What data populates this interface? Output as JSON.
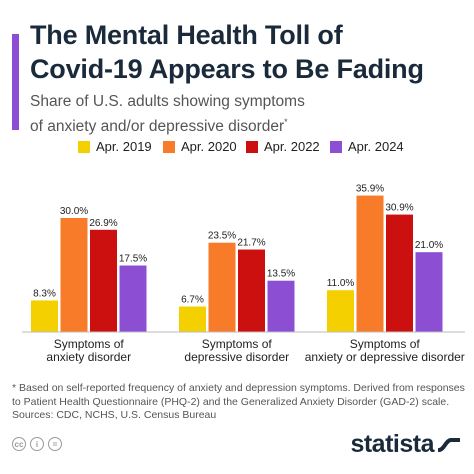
{
  "header": {
    "title_line1": "The Mental Health Toll of",
    "title_line2": "Covid-19 Appears to Be Fading",
    "subtitle_line1": "Share of U.S. adults showing symptoms",
    "subtitle_line2": "of anxiety and/or depressive disorder",
    "subtitle_mark": "*",
    "accent_color": "#8c4fd4"
  },
  "chart_data": {
    "type": "bar",
    "title": "",
    "xlabel": "",
    "ylabel": "",
    "ylim": [
      0,
      40
    ],
    "grid": false,
    "legend_position": "top",
    "value_suffix": "%",
    "categories": [
      [
        "Symptoms of",
        "anxiety disorder"
      ],
      [
        "Symptoms of",
        "depressive disorder"
      ],
      [
        "Symptoms of",
        "anxiety or depressive disorder"
      ]
    ],
    "series": [
      {
        "name": "Apr. 2019",
        "color": "#f5d000",
        "values": [
          8.3,
          6.7,
          11.0
        ]
      },
      {
        "name": "Apr. 2020",
        "color": "#f77b28",
        "values": [
          30.0,
          23.5,
          35.9
        ]
      },
      {
        "name": "Apr. 2022",
        "color": "#cc0f0f",
        "values": [
          26.9,
          21.7,
          30.9
        ]
      },
      {
        "name": "Apr. 2024",
        "color": "#8c4fd4",
        "values": [
          17.5,
          13.5,
          21.0
        ]
      }
    ]
  },
  "footer": {
    "note_line1": "* Based on self-reported frequency of anxiety and depression symptoms. Derived from responses",
    "note_line2": "to Patient Health Questionnaire (PHQ-2) and the Generalized Anxiety Disorder (GAD-2) scale.",
    "sources": "Sources: CDC, NCHS, U.S. Census Bureau",
    "license_icons": [
      "cc",
      "i",
      "="
    ],
    "brand": "statista",
    "brand_color": "#1b2a3a"
  }
}
